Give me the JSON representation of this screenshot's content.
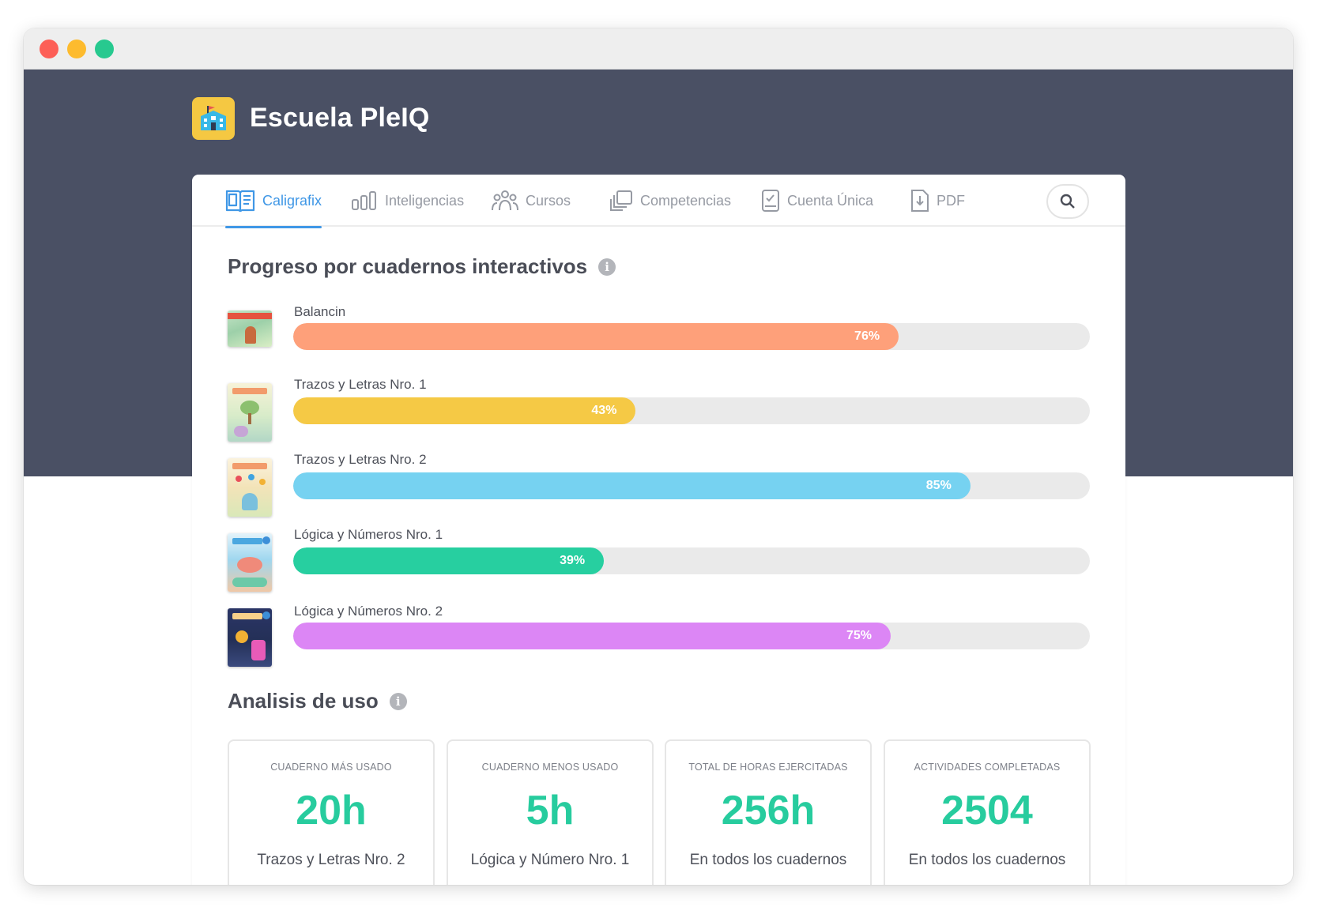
{
  "app": {
    "school_name": "Escuela PleIQ",
    "logo_icon": "school-building-icon"
  },
  "tabs": [
    {
      "label": "Caligrafix",
      "icon": "open-book-icon",
      "active": true
    },
    {
      "label": "Inteligencias",
      "icon": "bar-chart-icon",
      "active": false
    },
    {
      "label": "Cursos",
      "icon": "group-users-icon",
      "active": false
    },
    {
      "label": "Competencias",
      "icon": "copy-stack-icon",
      "active": false
    },
    {
      "label": "Cuenta Única",
      "icon": "tablet-check-icon",
      "active": false
    },
    {
      "label": "PDF",
      "icon": "download-file-icon",
      "active": false
    }
  ],
  "search": {
    "icon": "search-icon"
  },
  "progress": {
    "title": "Progreso por cuadernos interactivos",
    "items": [
      {
        "name": "Balancin",
        "percent_label": "76%",
        "value": 76,
        "color": "#fea07a"
      },
      {
        "name": "Trazos y Letras Nro. 1",
        "percent_label": "43%",
        "value": 43,
        "color": "#f5c945"
      },
      {
        "name": "Trazos y Letras Nro. 2",
        "percent_label": "85%",
        "value": 85,
        "color": "#76d2f1"
      },
      {
        "name": "Lógica y Números Nro. 1",
        "percent_label": "39%",
        "value": 39,
        "color": "#27cfa0"
      },
      {
        "name": "Lógica y Números Nro. 2",
        "percent_label": "75%",
        "value": 75,
        "color": "#dc86f5"
      }
    ]
  },
  "usage": {
    "title": "Analisis de uso",
    "cards": [
      {
        "label": "CUADERNO MÁS USADO",
        "value": "20h",
        "caption": "Trazos y Letras Nro. 2"
      },
      {
        "label": "CUADERNO MENOS USADO",
        "value": "5h",
        "caption": "Lógica y Número Nro. 1"
      },
      {
        "label": "TOTAL DE HORAS EJERCITADAS",
        "value": "256h",
        "caption": "En todos los cuadernos"
      },
      {
        "label": "ACTIVIDADES COMPLETADAS",
        "value": "2504",
        "caption": "En todos los cuadernos"
      }
    ]
  },
  "colors": {
    "accent": "#3f97e6",
    "stat_value": "#27cc9e",
    "hero_background": "#4a5064"
  }
}
